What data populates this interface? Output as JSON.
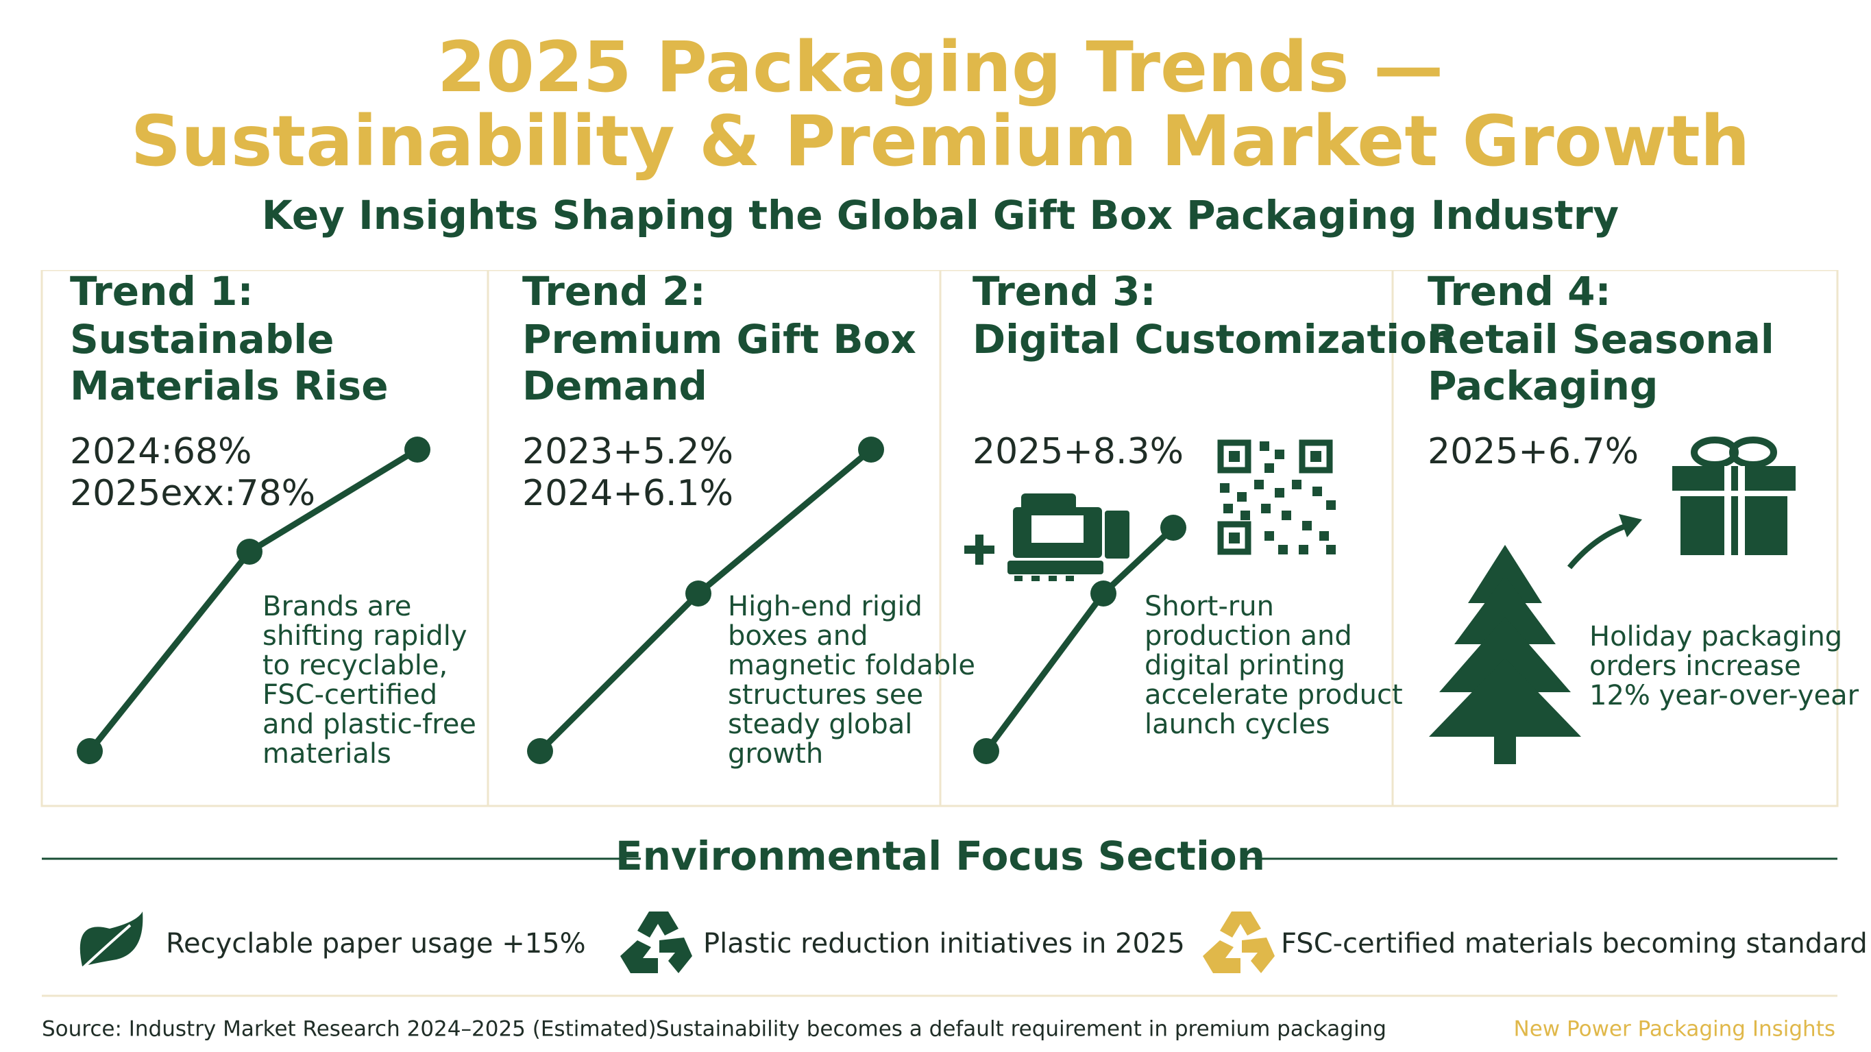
{
  "header": {
    "title_lines": [
      "2025 Packaging Trends —",
      "Sustainability & Premium Market Growth"
    ],
    "subtitle": "Key Insights Shaping the Global Gift Box Packaging Industry"
  },
  "trends": [
    {
      "label": "Trend 1:",
      "title_lines": [
        "Sustainable",
        "Materials Rise"
      ],
      "stats": [
        "2024:68%",
        "2025exx:78%"
      ],
      "description_lines": [
        "Brands are",
        "shifting rapidly",
        "to recyclable,",
        "FSC-certified",
        "and plastic-free",
        "materials"
      ]
    },
    {
      "label": "Trend 2:",
      "title_lines": [
        "Premium Gift Box",
        "Demand"
      ],
      "stats": [
        "2023+5.2%",
        "2024+6.1%"
      ],
      "description_lines": [
        "High-end rigid",
        "boxes and",
        "magnetic foldable",
        "structures see",
        "steady global",
        "growth"
      ]
    },
    {
      "label": "Trend 3:",
      "title_lines": [
        "Digital Customization"
      ],
      "stats": [
        "2025+8.3%"
      ],
      "description_lines": [
        "Short-run",
        "production and",
        "digital printing",
        "accelerate product",
        "launch cycles"
      ]
    },
    {
      "label": "Trend 4:",
      "title_lines": [
        "Retail Seasonal",
        "Packaging"
      ],
      "stats": [
        "2025+6.7%"
      ],
      "description_lines": [
        "Holiday packaging",
        "orders increase",
        "12% year-over-year"
      ]
    }
  ],
  "environmental": {
    "title": "Environmental Focus Section",
    "items": [
      "Recyclable paper usage +15%",
      "Plastic reduction initiatives in 2025",
      "FSC-certified materials becoming standard"
    ]
  },
  "footer": {
    "source": "Source: Industry Market Research 2024–2025 (Estimated)",
    "note": "Sustainability becomes a default requirement in premium packaging",
    "brand": "New Power Packaging Insights"
  }
}
